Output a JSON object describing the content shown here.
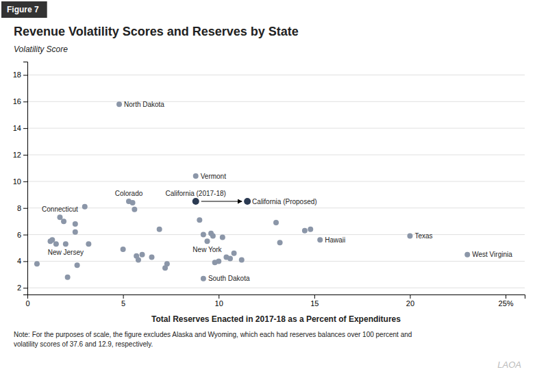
{
  "chart_data": {
    "type": "scatter",
    "figure_label": "Figure 7",
    "title": "Revenue Volatility Scores and Reserves by State",
    "ylabel": "Volatility Score",
    "xlabel": "Total Reserves Enacted in 2017-18 as a Percent of Expenditures",
    "note": "Note: For the purposes of scale, the figure excludes Alaska and Wyoming, which each had reserves balances over 100 percent and\nvolatility scores of 37.6 and 12.9, respectively.",
    "logo": "LAOA",
    "xlim": [
      0,
      26
    ],
    "ylim": [
      1.5,
      19
    ],
    "xticks": [
      0,
      5,
      10,
      15,
      20,
      {
        "value": 25,
        "label": "25%"
      }
    ],
    "yticks": [
      2,
      4,
      6,
      8,
      10,
      12,
      14,
      16,
      18
    ],
    "grid": true,
    "series": [
      {
        "color": "#8B96A8",
        "x": [
          0.5,
          1.2,
          1.3,
          1.5,
          1.7,
          1.9,
          2.0,
          2.1,
          2.5,
          2.5,
          2.6,
          3.0,
          3.2,
          4.8,
          5.0,
          5.3,
          5.5,
          5.6,
          5.7,
          5.8,
          6.0,
          6.5,
          6.9,
          7.2,
          7.3,
          8.8,
          9.0,
          9.2,
          9.4,
          9.6,
          9.7,
          9.8,
          10.0,
          10.2,
          10.4,
          10.6,
          10.8,
          11.2,
          9.2,
          13.0,
          13.2,
          14.5,
          14.8,
          15.3,
          20.0,
          23.0
        ],
        "values": [
          3.8,
          5.5,
          5.6,
          5.3,
          7.3,
          7.0,
          5.3,
          2.8,
          6.8,
          6.2,
          3.7,
          8.1,
          5.3,
          15.8,
          4.9,
          8.5,
          8.4,
          7.9,
          4.4,
          4.1,
          4.5,
          4.3,
          6.4,
          3.5,
          3.8,
          10.4,
          7.1,
          6.0,
          5.5,
          6.1,
          5.9,
          3.9,
          4.0,
          5.8,
          4.3,
          4.2,
          4.6,
          4.1,
          2.7,
          6.9,
          5.4,
          6.3,
          6.4,
          5.6,
          5.9,
          4.5
        ],
        "labels": [
          null,
          null,
          null,
          null,
          "Connecticut",
          null,
          "New Jersey",
          null,
          null,
          null,
          null,
          null,
          null,
          "North Dakota",
          null,
          "Colorado",
          null,
          null,
          null,
          null,
          null,
          null,
          null,
          null,
          null,
          "Vermont",
          null,
          null,
          "New York",
          null,
          null,
          null,
          null,
          null,
          null,
          null,
          null,
          null,
          "South Dakota",
          null,
          null,
          null,
          null,
          "Hawaii",
          "Texas",
          "West Virginia"
        ]
      },
      {
        "color": "#2B3A52",
        "x": [
          8.8,
          11.5
        ],
        "values": [
          8.5,
          8.5
        ],
        "labels": [
          "California (2017-18)",
          "California (Proposed)"
        ]
      }
    ]
  }
}
